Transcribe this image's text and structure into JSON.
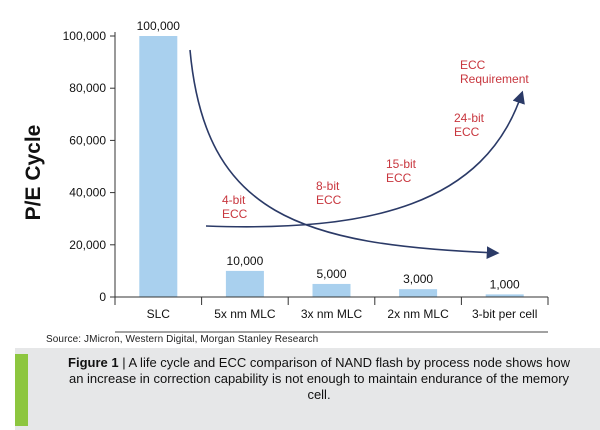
{
  "chart_data": {
    "type": "bar",
    "ylabel": "P/E Cycle",
    "ylim": [
      0,
      100000
    ],
    "yticks": [
      0,
      20000,
      40000,
      60000,
      80000,
      100000
    ],
    "ytick_labels": [
      "0",
      "20,000",
      "40,000",
      "60,000",
      "80,000",
      "100,000"
    ],
    "categories": [
      "SLC",
      "5x nm MLC",
      "3x nm MLC",
      "2x nm MLC",
      "3-bit per cell"
    ],
    "values": [
      100000,
      10000,
      5000,
      3000,
      1000
    ],
    "value_labels": [
      "100,000",
      "10,000",
      "5,000",
      "3,000",
      "1,000"
    ],
    "bar_color": "#a9d0ee",
    "annotation_color": "#c8363e",
    "annotations": [
      {
        "id": "ecc-4bit",
        "lines": [
          "4-bit",
          "ECC"
        ]
      },
      {
        "id": "ecc-8bit",
        "lines": [
          "8-bit",
          "ECC"
        ]
      },
      {
        "id": "ecc-15bit",
        "lines": [
          "15-bit",
          "ECC"
        ]
      },
      {
        "id": "ecc-24bit",
        "lines": [
          "24-bit",
          "ECC"
        ]
      },
      {
        "id": "ecc-requirement",
        "lines": [
          "ECC",
          "Requirement"
        ]
      }
    ],
    "curves": [
      {
        "name": "endurance-curve",
        "direction": "decreasing"
      },
      {
        "name": "ecc-requirement-curve",
        "direction": "increasing"
      }
    ]
  },
  "source": "Source: JMicron, Western Digital, Morgan Stanley Research",
  "caption": {
    "label": "Figure 1",
    "separator": " | ",
    "text": "A life cycle and ECC comparison of NAND flash by process node shows how an increase in correction capability is not enough to maintain endurance of the memory cell."
  },
  "colors": {
    "caption_bg": "#e6e7e8",
    "caption_accent": "#8dc63f",
    "curve": "#2b3a67"
  }
}
